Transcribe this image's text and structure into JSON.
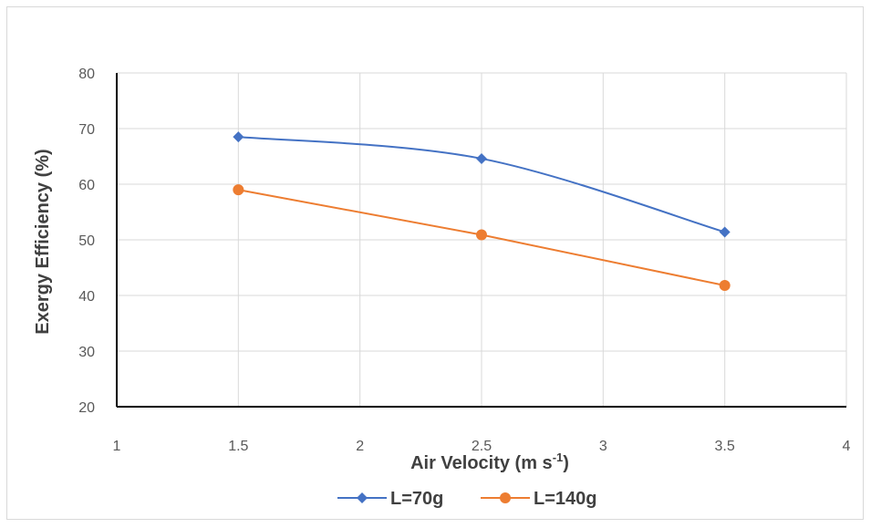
{
  "chart_data": {
    "type": "line",
    "xlabel": "Air Velocity (m s",
    "xlabel_superscript": "-1",
    "xlabel_suffix": ")",
    "ylabel": "Exergy Efficiency (%)",
    "xlim": [
      1,
      4
    ],
    "ylim": [
      20,
      80
    ],
    "x_ticks": [
      "1",
      "1.5",
      "2",
      "2.5",
      "3",
      "3.5",
      "4"
    ],
    "y_ticks": [
      "20",
      "30",
      "40",
      "50",
      "60",
      "70",
      "80"
    ],
    "grid": true,
    "legend_position": "bottom",
    "x": [
      1.5,
      2.5,
      3.5
    ],
    "series": [
      {
        "name": "L=70g",
        "values": [
          68.5,
          64.6,
          51.4
        ],
        "color": "#4472C4",
        "marker": "diamond",
        "smooth": true
      },
      {
        "name": "L=140g",
        "values": [
          59.0,
          50.9,
          41.8
        ],
        "color": "#ED7D31",
        "marker": "circle",
        "smooth": false
      }
    ]
  }
}
